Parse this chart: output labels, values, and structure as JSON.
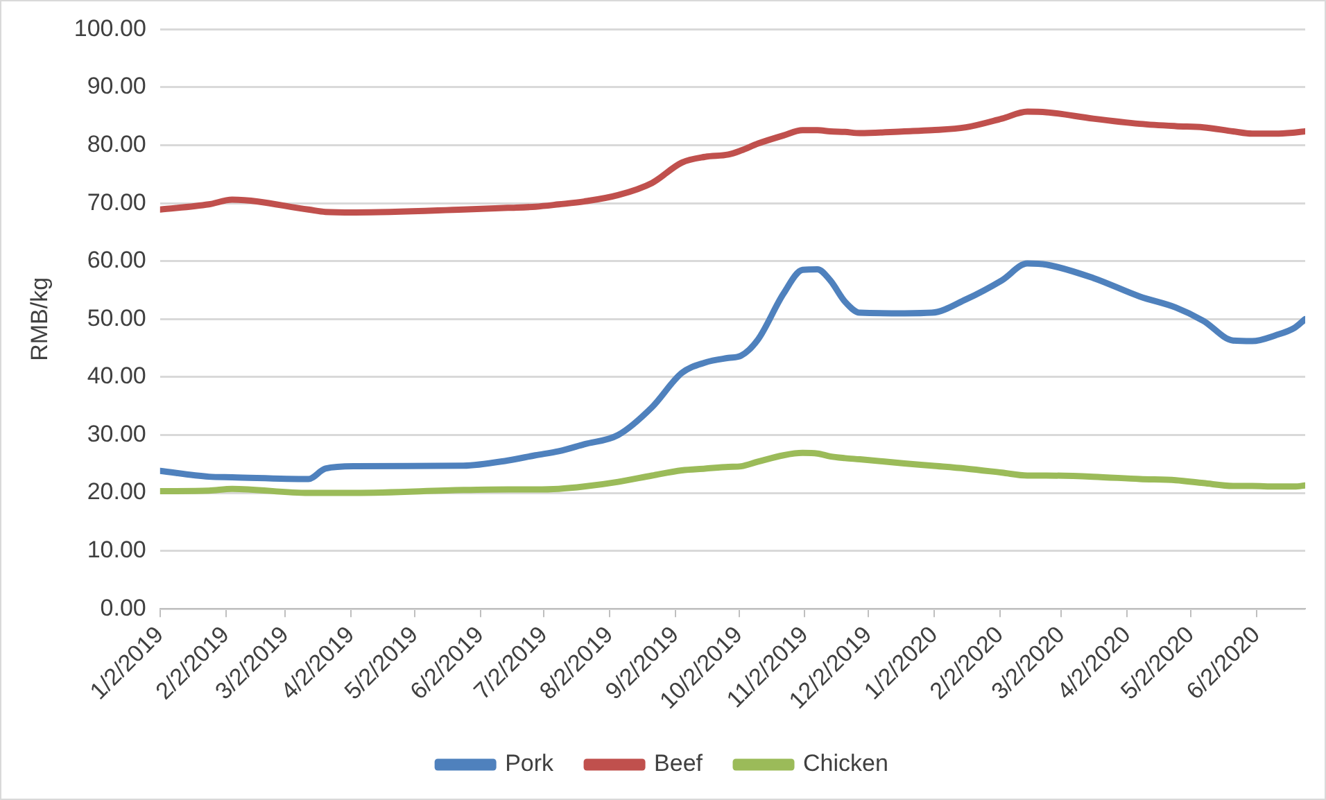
{
  "chart_data": {
    "type": "line",
    "ylabel": "RMB/kg",
    "x": [
      "2019-01-02",
      "2019-01-25",
      "2019-02-05",
      "2019-03-13",
      "2019-03-21",
      "2019-04-04",
      "2019-05-25",
      "2019-06-15",
      "2019-06-28",
      "2019-07-09",
      "2019-07-21",
      "2019-08-06",
      "2019-08-22",
      "2019-09-05",
      "2019-09-16",
      "2019-09-27",
      "2019-10-03",
      "2019-10-11",
      "2019-10-23",
      "2019-11-01",
      "2019-11-08",
      "2019-11-14",
      "2019-11-21",
      "2019-11-28",
      "2019-12-19",
      "2020-01-01",
      "2020-01-17",
      "2020-02-03",
      "2020-02-15",
      "2020-02-24",
      "2020-03-17",
      "2020-04-08",
      "2020-04-25",
      "2020-05-08",
      "2020-05-22",
      "2020-05-31",
      "2020-06-11",
      "2020-06-20",
      "2020-06-25"
    ],
    "series": [
      {
        "name": "Pork",
        "color": "#4f81bd",
        "values": [
          23.8,
          22.8,
          22.7,
          22.4,
          24.2,
          24.6,
          24.7,
          25.6,
          26.5,
          27.2,
          28.4,
          30,
          34.8,
          40.7,
          42.5,
          43.3,
          43.7,
          46.5,
          54.4,
          58.5,
          58.6,
          56.7,
          53,
          51.1,
          51,
          51.1,
          53.4,
          56.7,
          59.6,
          59.4,
          57.1,
          53.9,
          52,
          49.7,
          46.3,
          46.2,
          47.2,
          48.5,
          50
        ]
      },
      {
        "name": "Beef",
        "color": "#c0504d",
        "values": [
          68.9,
          69.8,
          70.6,
          68.9,
          68.5,
          68.4,
          68.9,
          69.2,
          69.4,
          69.8,
          70.3,
          71.4,
          73.5,
          77,
          78,
          78.4,
          79.1,
          80.3,
          81.7,
          82.6,
          82.6,
          82.4,
          82.3,
          82.1,
          82.4,
          82.6,
          83.1,
          84.6,
          85.8,
          85.7,
          84.6,
          83.7,
          83.3,
          83.1,
          82.4,
          82,
          82,
          82.2,
          82.4
        ]
      },
      {
        "name": "Chicken",
        "color": "#9bbb59",
        "values": [
          20.3,
          20.4,
          20.7,
          20,
          20,
          20,
          20.5,
          20.6,
          20.6,
          20.7,
          21.1,
          21.9,
          23,
          23.9,
          24.2,
          24.5,
          24.6,
          25.4,
          26.5,
          26.9,
          26.8,
          26.3,
          26,
          25.8,
          25.1,
          24.7,
          24.2,
          23.5,
          23,
          23,
          22.8,
          22.4,
          22.2,
          21.7,
          21.2,
          21.2,
          21.1,
          21.1,
          21.3
        ]
      }
    ],
    "xlim": [
      "2019-01-02",
      "2020-06-25"
    ],
    "xticks": [
      {
        "value": "2019-01-02",
        "label": "1/2/2019"
      },
      {
        "value": "2019-02-02",
        "label": "2/2/2019"
      },
      {
        "value": "2019-03-02",
        "label": "3/2/2019"
      },
      {
        "value": "2019-04-02",
        "label": "4/2/2019"
      },
      {
        "value": "2019-05-02",
        "label": "5/2/2019"
      },
      {
        "value": "2019-06-02",
        "label": "6/2/2019"
      },
      {
        "value": "2019-07-02",
        "label": "7/2/2019"
      },
      {
        "value": "2019-08-02",
        "label": "8/2/2019"
      },
      {
        "value": "2019-09-02",
        "label": "9/2/2019"
      },
      {
        "value": "2019-10-02",
        "label": "10/2/2019"
      },
      {
        "value": "2019-11-02",
        "label": "11/2/2019"
      },
      {
        "value": "2019-12-02",
        "label": "12/2/2019"
      },
      {
        "value": "2020-01-02",
        "label": "1/2/2020"
      },
      {
        "value": "2020-02-02",
        "label": "2/2/2020"
      },
      {
        "value": "2020-03-02",
        "label": "3/2/2020"
      },
      {
        "value": "2020-04-02",
        "label": "4/2/2020"
      },
      {
        "value": "2020-05-02",
        "label": "5/2/2020"
      },
      {
        "value": "2020-06-02",
        "label": "6/2/2020"
      }
    ],
    "ylim": [
      0,
      100
    ],
    "yticks": [
      {
        "value": 0,
        "label": "0.00"
      },
      {
        "value": 10,
        "label": "10.00"
      },
      {
        "value": 20,
        "label": "20.00"
      },
      {
        "value": 30,
        "label": "30.00"
      },
      {
        "value": 40,
        "label": "40.00"
      },
      {
        "value": 50,
        "label": "50.00"
      },
      {
        "value": 60,
        "label": "60.00"
      },
      {
        "value": 70,
        "label": "70.00"
      },
      {
        "value": 80,
        "label": "80.00"
      },
      {
        "value": 90,
        "label": "90.00"
      },
      {
        "value": 100,
        "label": "100.00"
      }
    ],
    "grid": "y",
    "legend": "bottom",
    "marker": "none",
    "line_style": "solid"
  }
}
